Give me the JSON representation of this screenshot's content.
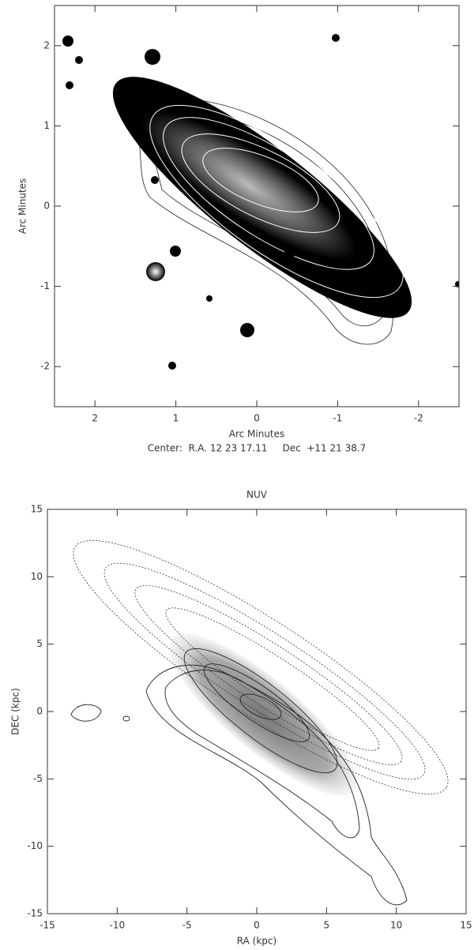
{
  "chart_data": [
    {
      "type": "image",
      "xlabel": "Arc Minutes",
      "ylabel": "Arc Minutes",
      "note": "Center:  R.A. 12 23 17.11     Dec  +11 21 38.7",
      "xlim": [
        2.5,
        -2.5
      ],
      "ylim": [
        -2.5,
        2.5
      ],
      "xticks": [
        2,
        1,
        0,
        -1,
        -2
      ],
      "yticks": [
        -2,
        -1,
        0,
        1,
        2
      ]
    },
    {
      "type": "image",
      "title": "NUV",
      "xlabel": "RA (kpc)",
      "ylabel": "DEC (kpc)",
      "xlim": [
        -15,
        15
      ],
      "ylim": [
        -15,
        15
      ],
      "xticks": [
        -15,
        -10,
        -5,
        0,
        5,
        10,
        15
      ],
      "yticks": [
        -15,
        -10,
        -5,
        0,
        5,
        10,
        15
      ]
    }
  ]
}
